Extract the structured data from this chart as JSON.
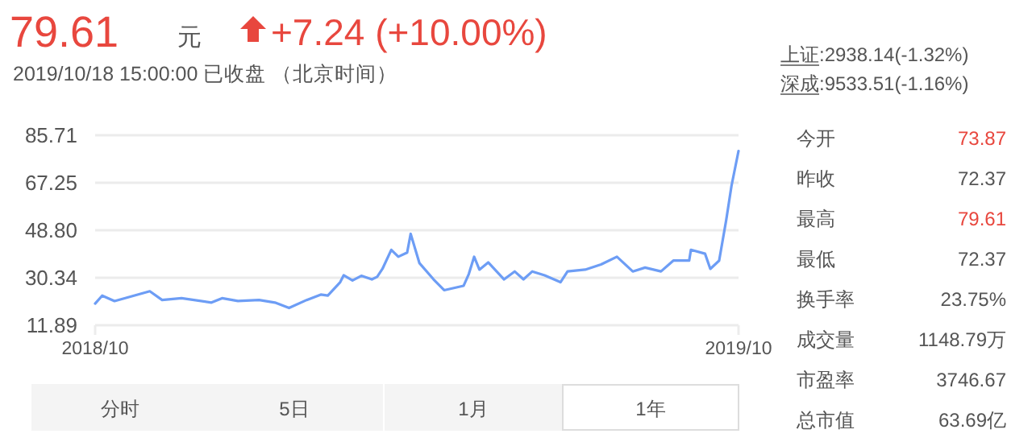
{
  "chart_data": {
    "type": "line",
    "title": "79.61",
    "subtitle": "2019/10/18 15:00:00  已收盘  （北京时间）",
    "annotations": [
      "元",
      "+7.24 (+10.00%)",
      "上证:2938.14(-1.32%)",
      "深成:9533.51(-1.16%)",
      "今开",
      "73.87",
      "昨收",
      "72.37",
      "最高",
      "79.61",
      "最低",
      "72.37",
      "换手率",
      "23.75%",
      "成交量",
      "1148.79万",
      "市盈率",
      "3746.67",
      "总市值",
      "63.69亿",
      "分时",
      "5日",
      "1月",
      "1年"
    ],
    "x": [
      "2018-10-18",
      "2018-10-22",
      "2018-10-29",
      "2018-11-07",
      "2018-11-18",
      "2018-11-25",
      "2018-12-06",
      "2018-12-23",
      "2018-12-29",
      "2019-01-07",
      "2019-01-19",
      "2019-01-28",
      "2019-02-05",
      "2019-02-15",
      "2019-02-23",
      "2019-02-27",
      "2019-03-06",
      "2019-03-08",
      "2019-03-13",
      "2019-03-18",
      "2019-03-24",
      "2019-03-27",
      "2019-03-30",
      "2019-04-04",
      "2019-04-08",
      "2019-04-13",
      "2019-04-15",
      "2019-04-20",
      "2019-04-28",
      "2019-05-04",
      "2019-05-15",
      "2019-05-18",
      "2019-05-21",
      "2019-05-24",
      "2019-05-29",
      "2019-06-07",
      "2019-06-13",
      "2019-06-18",
      "2019-06-23",
      "2019-06-30",
      "2019-07-09",
      "2019-07-13",
      "2019-07-23",
      "2019-08-01",
      "2019-08-10",
      "2019-08-19",
      "2019-08-26",
      "2019-09-04",
      "2019-09-11",
      "2019-09-20",
      "2019-09-21",
      "2019-09-29",
      "2019-10-02",
      "2019-10-07",
      "2019-10-11",
      "2019-10-14",
      "2019-10-18"
    ],
    "series": [
      {
        "color": "#6d9df5",
        "values": [
          20.3,
          23.4,
          21.3,
          23.0,
          25.1,
          21.7,
          22.4,
          20.7,
          22.4,
          21.3,
          21.7,
          20.7,
          18.6,
          21.7,
          23.8,
          23.4,
          28.6,
          31.3,
          29.3,
          31.1,
          29.7,
          30.7,
          33.8,
          41.2,
          38.5,
          40.1,
          47.4,
          36.0,
          29.7,
          25.5,
          27.2,
          31.8,
          38.5,
          33.5,
          36.3,
          29.7,
          32.8,
          29.7,
          32.8,
          31.3,
          28.6,
          32.8,
          33.5,
          35.5,
          38.5,
          32.8,
          34.3,
          32.8,
          37.0,
          37.0,
          41.2,
          39.7,
          33.8,
          37.0,
          52.7,
          66.0,
          79.61
        ]
      }
    ],
    "xlim": [
      "2018-10-18",
      "2019-10-18"
    ],
    "xticks": [
      {
        "value": "2018-10-18",
        "label": "2018/10"
      },
      {
        "value": "2019-10-18",
        "label": "2019/10"
      }
    ],
    "ylim": [
      11.89,
      85.71
    ],
    "yticks": [
      11.89,
      30.34,
      {
        "value": 48.8,
        "label": "48.80"
      },
      67.25,
      85.71
    ],
    "grid": "y",
    "marker": "none",
    "line_style": "solid"
  }
}
